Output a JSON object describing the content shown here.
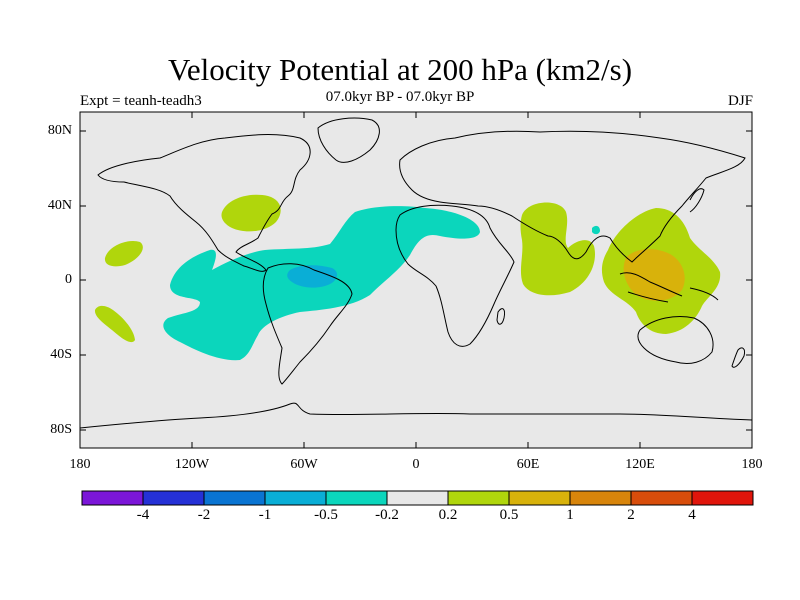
{
  "title": "Velocity Potential at 200 hPa (km2/s)",
  "subtitle": "07.0kyr BP - 07.0kyr BP",
  "experiment": "Expt = teanh-teadh3",
  "season": "DJF",
  "axes": {
    "lat_ticks": [
      "80N",
      "40N",
      "0",
      "40S",
      "80S"
    ],
    "lon_ticks": [
      "180",
      "120W",
      "60W",
      "0",
      "60E",
      "120E",
      "180"
    ]
  },
  "colorbar": {
    "colors": [
      "#7b16d8",
      "#2531d6",
      "#0a74d2",
      "#0aaed6",
      "#0bd6bc",
      "#e8e8e8",
      "#b0d60c",
      "#d8b20b",
      "#d8850b",
      "#d84d0b",
      "#e0150b"
    ],
    "labels": [
      "-4",
      "-2",
      "-1",
      "-0.5",
      "-0.2",
      "0.2",
      "0.5",
      "1",
      "2",
      "4"
    ]
  },
  "colors": {
    "ocean_land_background": "#e8e8e8",
    "negative_contour": "#0bd6bc",
    "strong_negative": "#0aaed6",
    "positive_contour": "#b0d60c",
    "strong_positive": "#d8b20b"
  }
}
